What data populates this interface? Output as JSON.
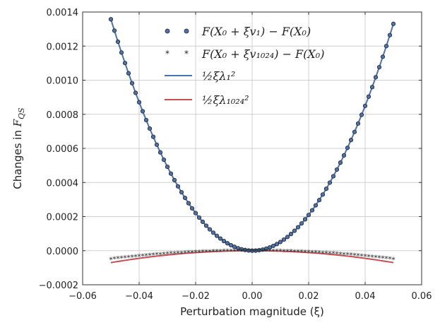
{
  "chart_data": {
    "type": "line",
    "title": "",
    "xlabel": "Perturbation magnitude (ξ)",
    "ylabel": "Changes in F_QS",
    "ylabel_prefix": "Changes in ",
    "ylabel_math": "F",
    "ylabel_sub": "QS",
    "xlim": [
      -0.06,
      0.06
    ],
    "ylim": [
      -0.0002,
      0.0014
    ],
    "xticks": [
      -0.06,
      -0.04,
      -0.02,
      0.0,
      0.02,
      0.04,
      0.06
    ],
    "xtick_labels": [
      "−0.06",
      "−0.04",
      "−0.02",
      "0.00",
      "0.02",
      "0.04",
      "0.06"
    ],
    "yticks": [
      -0.0002,
      0.0,
      0.0002,
      0.0004,
      0.0006,
      0.0008,
      0.001,
      0.0012,
      0.0014
    ],
    "ytick_labels": [
      "−0.0002",
      "0.0000",
      "0.0002",
      "0.0004",
      "0.0006",
      "0.0008",
      "0.0010",
      "0.0012",
      "0.0014"
    ],
    "grid": true,
    "legend_position": "top-center",
    "legend_labels": [
      "F(X₀ + ξv₁) − F(X₀)",
      "F(X₀ + ξv₁₀₂₄) − F(X₀)",
      "½ξλ₁²",
      "½ξλ₁₀₂₄²"
    ],
    "x_min": -0.05,
    "x_max": 0.05,
    "n_points": 81,
    "series": [
      {
        "name": "F(X₀ + ξv₁) − F(X₀)",
        "kind": "scatter",
        "marker": "circle",
        "color": "#4c72b0",
        "edge_color": "#222222",
        "quadratic_coef": 0.5376,
        "linear_coef": -0.00027
      },
      {
        "name": "F(X₀ + ξv₁₀₂₄) − F(X₀)",
        "kind": "scatter",
        "marker": "star",
        "color": "#333333",
        "quadratic_coef": -0.02,
        "linear_coef": 0.0
      },
      {
        "name": "½ξλ₁²",
        "kind": "line",
        "color": "#4c72b0",
        "quadratic_coef": 0.5376,
        "linear_coef": -0.00027
      },
      {
        "name": "½ξλ₁₀₂₄²",
        "kind": "line",
        "color": "#c44e52",
        "quadratic_coef": -0.028,
        "linear_coef": 0.0
      }
    ]
  }
}
